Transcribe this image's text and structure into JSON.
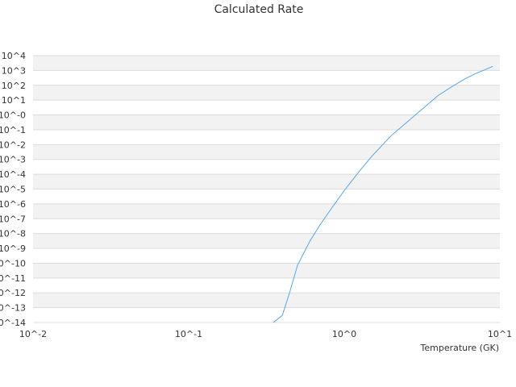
{
  "chart_data": {
    "type": "line",
    "title": "Calculated Rate",
    "xlabel": "Temperature (GK)",
    "ylabel": "",
    "x_scale": "log",
    "y_scale": "log",
    "xlim": [
      0.01,
      10
    ],
    "ylim": [
      1e-14,
      10000
    ],
    "grid": "horizontal alternating bands",
    "x_ticks": [
      "10^-2",
      "10^-1",
      "10^0",
      "10^1"
    ],
    "y_ticks": [
      "10^-14",
      "10^-13",
      "10^-12",
      "10^-11",
      "10^-10",
      "10^-9",
      "10^-8",
      "10^-7",
      "10^-6",
      "10^-5",
      "10^-4",
      "10^-3",
      "10^-2",
      "10^-1",
      "10^-0",
      "10^1",
      "10^2",
      "10^3",
      "10^4"
    ],
    "series": [
      {
        "color": "#5aa6e6",
        "x": [
          0.35,
          0.4,
          0.45,
          0.5,
          0.6,
          0.7,
          0.8,
          1.0,
          1.25,
          1.5,
          2.0,
          3.0,
          4.0,
          5.0,
          6.0,
          7.0,
          8.0,
          9.0
        ],
        "y": [
          1e-14,
          3e-14,
          1.5e-12,
          7e-11,
          3e-09,
          4e-08,
          3e-07,
          8e-06,
          0.00016,
          0.0016,
          0.04,
          1.5,
          20,
          90,
          280,
          630,
          1100,
          1900
        ]
      }
    ]
  }
}
